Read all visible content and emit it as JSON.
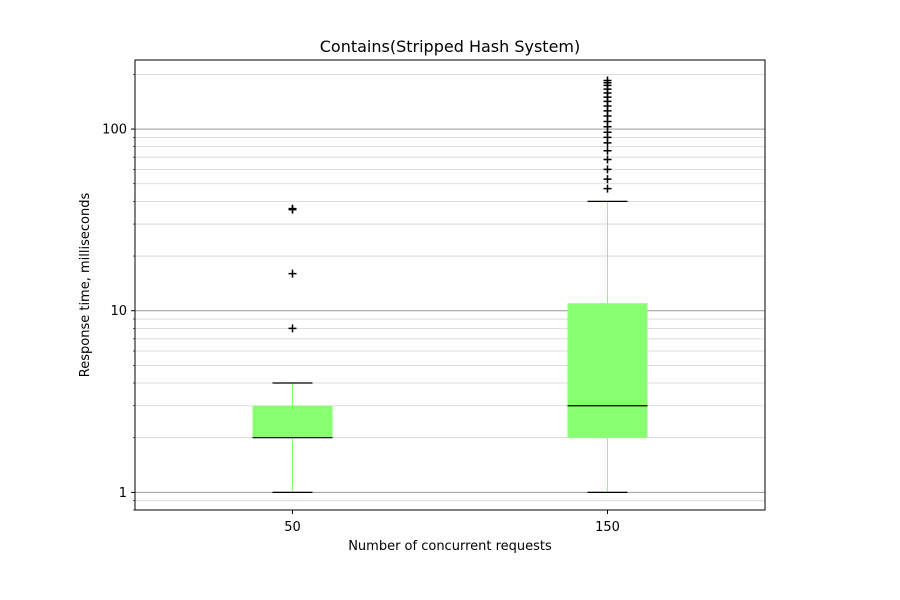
{
  "chart_data": {
    "type": "box",
    "title": "Contains(Stripped Hash System)",
    "xlabel": "Number of concurrent requests",
    "ylabel": "Response time, milliseconds",
    "yscale": "log",
    "ylim": [
      0.8,
      240
    ],
    "grid": true,
    "categories": [
      "50",
      "150"
    ],
    "boxes": [
      {
        "category": "50",
        "whisker_low": 1,
        "q1": 2,
        "median": 2,
        "q3": 3,
        "whisker_high": 4,
        "outliers": [
          8,
          16,
          36,
          36.5
        ]
      },
      {
        "category": "150",
        "whisker_low": 1,
        "q1": 2,
        "median": 3,
        "q3": 11,
        "whisker_high": 40,
        "outliers": [
          47,
          53,
          60,
          68,
          76,
          84,
          90,
          96,
          103,
          110,
          118,
          126,
          134,
          142,
          150,
          158,
          166,
          174,
          180,
          185
        ]
      }
    ],
    "y_ticks": [
      {
        "value": 1,
        "label": "1"
      },
      {
        "value": 10,
        "label": "10"
      },
      {
        "value": 100,
        "label": "100"
      }
    ],
    "colors": {
      "box_fill": "#88ff70",
      "whisker": "#88ff70",
      "median": "#000000",
      "cap": "#000000",
      "flier": "#000000",
      "major_grid": "#999999",
      "minor_grid": "#d3d3d3"
    }
  }
}
